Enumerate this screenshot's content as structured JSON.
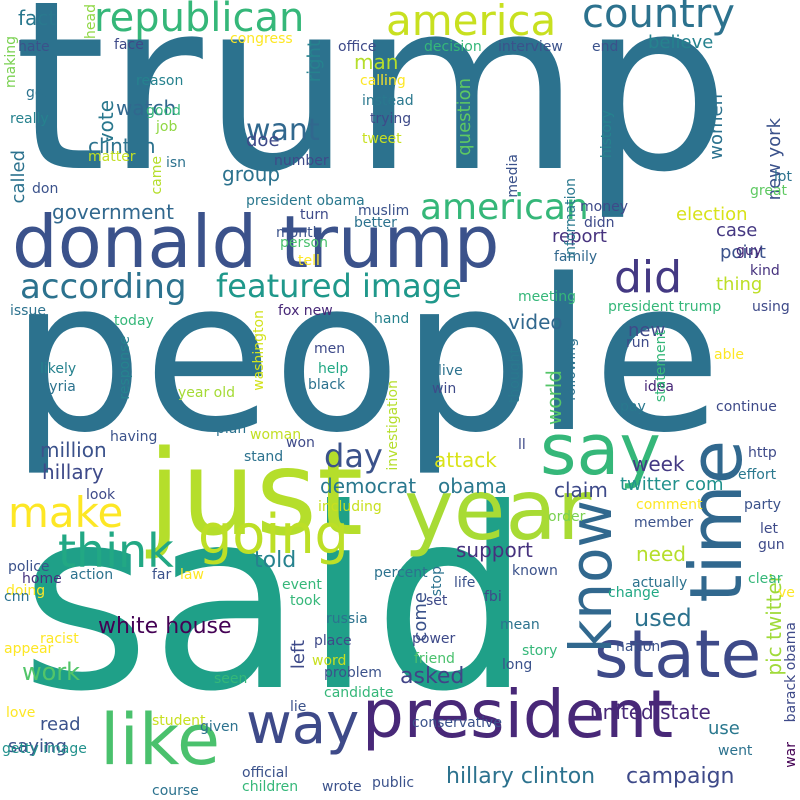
{
  "words": [
    {
      "text": "trump",
      "color": "#2c728e"
    },
    {
      "text": "people",
      "color": "#2c728e"
    },
    {
      "text": "said",
      "color": "#1fa088"
    },
    {
      "text": "donald trump",
      "color": "#3b528b"
    },
    {
      "text": "just",
      "color": "#b5de2b"
    },
    {
      "text": "year",
      "color": "#a8db34"
    },
    {
      "text": "say",
      "color": "#35b779"
    },
    {
      "text": "president",
      "color": "#482878"
    },
    {
      "text": "like",
      "color": "#4ac16d"
    },
    {
      "text": "time",
      "color": "#31688e"
    },
    {
      "text": "state",
      "color": "#3e4a89"
    },
    {
      "text": "know",
      "color": "#31688e"
    },
    {
      "text": "going",
      "color": "#bddf26"
    },
    {
      "text": "way",
      "color": "#3e4a89"
    },
    {
      "text": "think",
      "color": "#22a884"
    },
    {
      "text": "make",
      "color": "#fde725"
    },
    {
      "text": "republican",
      "color": "#35b779"
    },
    {
      "text": "america",
      "color": "#c8e020"
    },
    {
      "text": "country",
      "color": "#2c728e"
    },
    {
      "text": "did",
      "color": "#443983"
    },
    {
      "text": "american",
      "color": "#35b779"
    },
    {
      "text": "according",
      "color": "#2c728e"
    },
    {
      "text": "featured image",
      "color": "#1f988b"
    },
    {
      "text": "want",
      "color": "#31688e"
    },
    {
      "text": "day",
      "color": "#3b528b"
    },
    {
      "text": "work",
      "color": "#52c569"
    },
    {
      "text": "campaign",
      "color": "#3e4a89"
    },
    {
      "text": "hillary clinton",
      "color": "#2c728e"
    },
    {
      "text": "united state",
      "color": "#482878"
    },
    {
      "text": "white house",
      "color": "#440154"
    },
    {
      "text": "used",
      "color": "#2c728e"
    },
    {
      "text": "need",
      "color": "#b5de2b"
    },
    {
      "text": "support",
      "color": "#46327e"
    },
    {
      "text": "asked",
      "color": "#414487"
    },
    {
      "text": "told",
      "color": "#26828e"
    },
    {
      "text": "democrat",
      "color": "#2a788e"
    },
    {
      "text": "million",
      "color": "#3b528b"
    },
    {
      "text": "hillary",
      "color": "#3e4a89"
    },
    {
      "text": "obama",
      "color": "#2a788e"
    },
    {
      "text": "clinton",
      "color": "#2c728e"
    },
    {
      "text": "watch",
      "color": "#31688e"
    },
    {
      "text": "government",
      "color": "#31688e"
    },
    {
      "text": "group",
      "color": "#2c728e"
    },
    {
      "text": "doe",
      "color": "#3e4a89"
    },
    {
      "text": "vote",
      "color": "#2a788e"
    },
    {
      "text": "right",
      "color": "#26828e"
    },
    {
      "text": "man",
      "color": "#b5de2b"
    },
    {
      "text": "believe",
      "color": "#26828e"
    },
    {
      "text": "fact",
      "color": "#2a788e"
    },
    {
      "text": "called",
      "color": "#2c728e"
    },
    {
      "text": "video",
      "color": "#31688e"
    },
    {
      "text": "world",
      "color": "#54c568"
    },
    {
      "text": "attack",
      "color": "#dae319"
    },
    {
      "text": "claim",
      "color": "#3e4a89"
    },
    {
      "text": "twitter com",
      "color": "#21918c"
    },
    {
      "text": "pic twitter",
      "color": "#a0da39"
    },
    {
      "text": "week",
      "color": "#443983"
    },
    {
      "text": "question",
      "color": "#5ec962"
    },
    {
      "text": "report",
      "color": "#46327e"
    },
    {
      "text": "case",
      "color": "#453882"
    },
    {
      "text": "point",
      "color": "#3b528b"
    },
    {
      "text": "thing",
      "color": "#bddf26"
    },
    {
      "text": "new",
      "color": "#3e4a89"
    },
    {
      "text": "women",
      "color": "#2c728e"
    },
    {
      "text": "new york",
      "color": "#3b528b"
    },
    {
      "text": "election",
      "color": "#d8e219"
    },
    {
      "text": "left",
      "color": "#3e4a89"
    },
    {
      "text": "come",
      "color": "#3b528b"
    },
    {
      "text": "read",
      "color": "#3b528b"
    },
    {
      "text": "saying",
      "color": "#3b528b"
    },
    {
      "text": "use",
      "color": "#2a788e"
    },
    {
      "text": "president obama",
      "color": "#2a788e"
    },
    {
      "text": "year old",
      "color": "#a5db36"
    },
    {
      "text": "having",
      "color": "#3b528b"
    },
    {
      "text": "black",
      "color": "#2c728e"
    },
    {
      "text": "muslim",
      "color": "#3b528b"
    },
    {
      "text": "better",
      "color": "#2c728e"
    },
    {
      "text": "turn",
      "color": "#3e4a89"
    },
    {
      "text": "month",
      "color": "#3b528b"
    },
    {
      "text": "person",
      "color": "#4ac16d"
    },
    {
      "text": "tell",
      "color": "#fde725"
    },
    {
      "text": "fox new",
      "color": "#482878"
    },
    {
      "text": "men",
      "color": "#3e4a89"
    },
    {
      "text": "help",
      "color": "#22a884"
    },
    {
      "text": "live",
      "color": "#2c728e"
    },
    {
      "text": "win",
      "color": "#3e4a89"
    },
    {
      "text": "thought",
      "color": "#2a788e"
    },
    {
      "text": "following",
      "color": "#2c728e"
    },
    {
      "text": "idea",
      "color": "#482878"
    },
    {
      "text": "pay",
      "color": "#2a788e"
    },
    {
      "text": "continue",
      "color": "#3e4a89"
    },
    {
      "text": "woman",
      "color": "#c2df23"
    },
    {
      "text": "won",
      "color": "#3e4a89"
    },
    {
      "text": "plan",
      "color": "#2c728e"
    },
    {
      "text": "stand",
      "color": "#2c728e"
    },
    {
      "text": "ll",
      "color": "#3e4a89"
    },
    {
      "text": "investigation",
      "color": "#b5de2b"
    },
    {
      "text": "washington",
      "color": "#d2e21b"
    },
    {
      "text": "response",
      "color": "#26828e"
    },
    {
      "text": "statement",
      "color": "#35b779"
    },
    {
      "text": "syria",
      "color": "#2c728e"
    },
    {
      "text": "likely",
      "color": "#26828e"
    },
    {
      "text": "today",
      "color": "#35b779"
    },
    {
      "text": "issue",
      "color": "#2c728e"
    },
    {
      "text": "meeting",
      "color": "#35b779"
    },
    {
      "text": "hand",
      "color": "#26828e"
    },
    {
      "text": "president trump",
      "color": "#35b779"
    },
    {
      "text": "using",
      "color": "#3e4a89"
    },
    {
      "text": "run",
      "color": "#3e4a89"
    },
    {
      "text": "able",
      "color": "#fde725"
    },
    {
      "text": "kind",
      "color": "#46327e"
    },
    {
      "text": "guy",
      "color": "#482878"
    },
    {
      "text": "lot",
      "color": "#2c728e"
    },
    {
      "text": "great",
      "color": "#5ec962"
    },
    {
      "text": "family",
      "color": "#31688e"
    },
    {
      "text": "money",
      "color": "#3e4a89"
    },
    {
      "text": "didn",
      "color": "#3e4a89"
    },
    {
      "text": "information",
      "color": "#2a788e"
    },
    {
      "text": "media",
      "color": "#3b528b"
    },
    {
      "text": "history",
      "color": "#26828e"
    },
    {
      "text": "good",
      "color": "#35b779"
    },
    {
      "text": "reason",
      "color": "#26828e"
    },
    {
      "text": "got",
      "color": "#2c728e"
    },
    {
      "text": "really",
      "color": "#26828e"
    },
    {
      "text": "hate",
      "color": "#3b528b"
    },
    {
      "text": "making",
      "color": "#7ad151"
    },
    {
      "text": "head",
      "color": "#8fd744"
    },
    {
      "text": "face",
      "color": "#3e4a89"
    },
    {
      "text": "congress",
      "color": "#fde725"
    },
    {
      "text": "office",
      "color": "#3e4a89"
    },
    {
      "text": "decision",
      "color": "#35b779"
    },
    {
      "text": "interview",
      "color": "#3b528b"
    },
    {
      "text": "end",
      "color": "#3b528b"
    },
    {
      "text": "calling",
      "color": "#fde725"
    },
    {
      "text": "instead",
      "color": "#2a788e"
    },
    {
      "text": "trying",
      "color": "#3e4a89"
    },
    {
      "text": "tweet",
      "color": "#c8e020"
    },
    {
      "text": "job",
      "color": "#90d743"
    },
    {
      "text": "matter",
      "color": "#c2df23"
    },
    {
      "text": "came",
      "color": "#b5de2b"
    },
    {
      "text": "isn",
      "color": "#2c728e"
    },
    {
      "text": "don",
      "color": "#3b528b"
    },
    {
      "text": "number",
      "color": "#3e4a89"
    },
    {
      "text": "http",
      "color": "#3e4a89"
    },
    {
      "text": "effort",
      "color": "#2a788e"
    },
    {
      "text": "party",
      "color": "#3b528b"
    },
    {
      "text": "let",
      "color": "#3e4a89"
    },
    {
      "text": "gun",
      "color": "#3e4a89"
    },
    {
      "text": "comment",
      "color": "#fde725"
    },
    {
      "text": "member",
      "color": "#3b528b"
    },
    {
      "text": "order",
      "color": "#7ad151"
    },
    {
      "text": "look",
      "color": "#3e4a89"
    },
    {
      "text": "including",
      "color": "#c8e020"
    },
    {
      "text": "police",
      "color": "#3b528b"
    },
    {
      "text": "doing",
      "color": "#fde725"
    },
    {
      "text": "home",
      "color": "#46327e"
    },
    {
      "text": "action",
      "color": "#2c728e"
    },
    {
      "text": "far",
      "color": "#3b528b"
    },
    {
      "text": "law",
      "color": "#fde725"
    },
    {
      "text": "event",
      "color": "#35b779"
    },
    {
      "text": "took",
      "color": "#35b779"
    },
    {
      "text": "percent",
      "color": "#2c728e"
    },
    {
      "text": "life",
      "color": "#3b528b"
    },
    {
      "text": "stop",
      "color": "#2c728e"
    },
    {
      "text": "fbi",
      "color": "#3e4a89"
    },
    {
      "text": "known",
      "color": "#3b528b"
    },
    {
      "text": "actually",
      "color": "#2c728e"
    },
    {
      "text": "change",
      "color": "#22a884"
    },
    {
      "text": "clear",
      "color": "#35b779"
    },
    {
      "text": "ve",
      "color": "#fde725"
    },
    {
      "text": "cnn",
      "color": "#2c728e"
    },
    {
      "text": "racist",
      "color": "#fde725"
    },
    {
      "text": "set",
      "color": "#3e4a89"
    },
    {
      "text": "russia",
      "color": "#2c728e"
    },
    {
      "text": "place",
      "color": "#3e4a89"
    },
    {
      "text": "power",
      "color": "#3e4a89"
    },
    {
      "text": "mean",
      "color": "#2c728e"
    },
    {
      "text": "friend",
      "color": "#4ac16d"
    },
    {
      "text": "story",
      "color": "#35b779"
    },
    {
      "text": "nation",
      "color": "#3b528b"
    },
    {
      "text": "long",
      "color": "#3b528b"
    },
    {
      "text": "barack obama",
      "color": "#3e4a89"
    },
    {
      "text": "appear",
      "color": "#fde725"
    },
    {
      "text": "word",
      "color": "#c8e020"
    },
    {
      "text": "problem",
      "color": "#3b528b"
    },
    {
      "text": "candidate",
      "color": "#35b779"
    },
    {
      "text": "lie",
      "color": "#3b528b"
    },
    {
      "text": "seen",
      "color": "#35b779"
    },
    {
      "text": "love",
      "color": "#fde725"
    },
    {
      "text": "student",
      "color": "#c8e020"
    },
    {
      "text": "given",
      "color": "#2c728e"
    },
    {
      "text": "conservative",
      "color": "#3b528b"
    },
    {
      "text": "went",
      "color": "#2c728e"
    },
    {
      "text": "war",
      "color": "#440154"
    },
    {
      "text": "getty image",
      "color": "#21918c"
    },
    {
      "text": "official",
      "color": "#3b528b"
    },
    {
      "text": "course",
      "color": "#2c728e"
    },
    {
      "text": "children",
      "color": "#35b779"
    },
    {
      "text": "wrote",
      "color": "#3b528b"
    },
    {
      "text": "public",
      "color": "#3b528b"
    }
  ]
}
